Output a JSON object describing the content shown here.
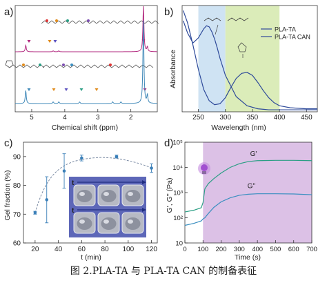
{
  "caption": "图 2.PLA-TA 与 PLA-TA CAN 的制备表征",
  "panels": {
    "a": "a)",
    "b": "b)",
    "c": "c)",
    "d": "d)"
  },
  "chart_data": [
    {
      "panel": "a",
      "type": "line",
      "xlabel": "Chemical shift (ppm)",
      "ylabel": "",
      "xlim": [
        5.5,
        1.2
      ],
      "xticks": [
        5,
        4,
        3,
        2
      ],
      "series": [
        {
          "color": "#b2297f",
          "peaks": [
            {
              "x": 5.18,
              "height": 0.14
            },
            {
              "x": 4.35,
              "height": 0.02
            },
            {
              "x": 4.18,
              "height": 0.02
            },
            {
              "x": 1.62,
              "height": 1.0
            },
            {
              "x": 1.5,
              "height": 0.1
            }
          ]
        },
        {
          "color": "#3f88b8",
          "peaks": [
            {
              "x": 5.18,
              "height": 0.16
            },
            {
              "x": 4.35,
              "height": 0.02
            },
            {
              "x": 4.18,
              "height": 0.02
            },
            {
              "x": 3.55,
              "height": 0.02
            },
            {
              "x": 2.55,
              "height": 0.02
            },
            {
              "x": 2.3,
              "height": 0.02
            },
            {
              "x": 1.62,
              "height": 1.0
            },
            {
              "x": 1.5,
              "height": 0.1
            }
          ]
        }
      ]
    },
    {
      "panel": "b",
      "type": "line",
      "xlabel": "Wavelength (nm)",
      "ylabel": "Absorbance",
      "xlim": [
        220,
        470
      ],
      "xticks": [
        250,
        300,
        350,
        400,
        450
      ],
      "bands": [
        {
          "from": 250,
          "to": 300,
          "color": "#cfe3f3"
        },
        {
          "from": 300,
          "to": 400,
          "color": "#dbecb9"
        }
      ],
      "series": [
        {
          "name": "PLA-TA",
          "color": "#2e4a9a",
          "x": [
            222,
            230,
            240,
            250,
            260,
            265,
            270,
            275,
            280,
            285,
            290,
            300,
            320,
            340,
            360,
            380,
            400,
            420,
            450,
            470
          ],
          "y": [
            0.9,
            0.78,
            0.68,
            0.73,
            0.82,
            0.85,
            0.84,
            0.79,
            0.72,
            0.63,
            0.53,
            0.36,
            0.15,
            0.06,
            0.03,
            0.02,
            0.02,
            0.02,
            0.02,
            0.02
          ]
        },
        {
          "name": "PLA-TA CAN",
          "color": "#2e4a9a",
          "x": [
            222,
            230,
            240,
            250,
            260,
            270,
            280,
            290,
            300,
            310,
            320,
            330,
            340,
            350,
            360,
            370,
            380,
            390,
            400,
            420,
            450,
            470
          ],
          "y": [
            1.0,
            0.88,
            0.66,
            0.42,
            0.22,
            0.11,
            0.07,
            0.08,
            0.14,
            0.24,
            0.33,
            0.38,
            0.39,
            0.36,
            0.29,
            0.21,
            0.14,
            0.09,
            0.06,
            0.04,
            0.03,
            0.03
          ]
        }
      ]
    },
    {
      "panel": "c",
      "type": "scatter",
      "xlabel": "t (min)",
      "ylabel": "Gel fraction (%)",
      "xlim": [
        10,
        125
      ],
      "ylim": [
        60,
        95
      ],
      "xticks": [
        20,
        40,
        60,
        80,
        100,
        120
      ],
      "yticks": [
        60,
        70,
        80,
        90
      ],
      "x": [
        20,
        30,
        45,
        60,
        90,
        120
      ],
      "y": [
        70.5,
        75,
        85,
        89.5,
        90,
        86
      ],
      "err": [
        0.5,
        8,
        6,
        1,
        0.5,
        1.5
      ],
      "inset_label": "t"
    },
    {
      "panel": "d",
      "type": "line",
      "xlabel": "Time (s)",
      "ylabel": "G', G'' (Pa)",
      "xlim": [
        0,
        700
      ],
      "ylim_log": [
        10,
        100000
      ],
      "xticks": [
        0,
        100,
        200,
        300,
        400,
        500,
        600,
        700
      ],
      "yticks": [
        "10",
        "10²",
        "10³",
        "10⁴",
        "10⁵"
      ],
      "band": {
        "from": 100,
        "to": 700,
        "color": "#dcc1e6"
      },
      "series": [
        {
          "name": "G'",
          "color": "#2a9e84",
          "x": [
            0,
            50,
            90,
            100,
            110,
            130,
            160,
            200,
            250,
            300,
            350,
            400,
            500,
            600,
            700
          ],
          "y": [
            170,
            200,
            250,
            400,
            1400,
            2300,
            3600,
            6000,
            10000,
            14000,
            17000,
            18500,
            19000,
            19000,
            18500
          ]
        },
        {
          "name": "G\"",
          "color": "#3a8fc0",
          "x": [
            0,
            50,
            90,
            100,
            110,
            130,
            160,
            200,
            250,
            300,
            350,
            400,
            500,
            600,
            700
          ],
          "y": [
            50,
            60,
            75,
            90,
            100,
            150,
            260,
            430,
            620,
            780,
            860,
            900,
            900,
            880,
            820
          ]
        }
      ]
    }
  ]
}
